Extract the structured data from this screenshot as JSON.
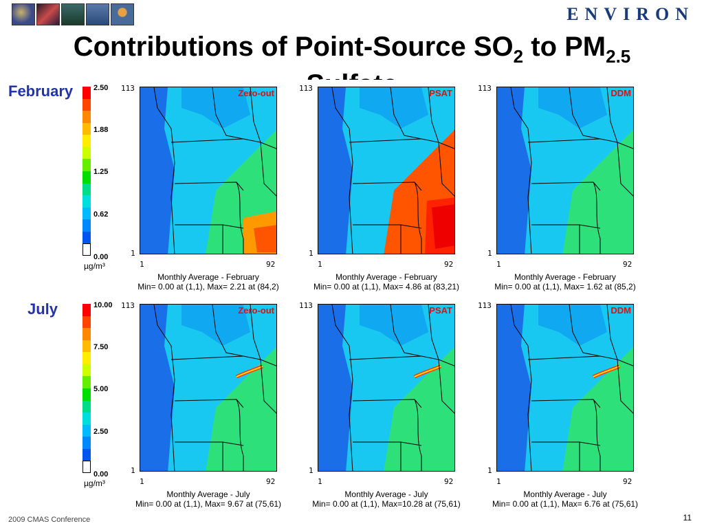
{
  "header": {
    "logo_text": "ENVIRON",
    "thumbnails": [
      {
        "icon": "globe-photo-icon",
        "color": "#3a4a8a"
      },
      {
        "icon": "dna-photo-icon",
        "color": "#7a2a3a"
      },
      {
        "icon": "forest-photo-icon",
        "color": "#2a5a4a"
      },
      {
        "icon": "water-photo-icon",
        "color": "#3a5a8a"
      },
      {
        "icon": "balloon-photo-icon",
        "color": "#4a6a9a"
      }
    ]
  },
  "title": {
    "part1": "Contributions of Point-Source SO",
    "sub1": "2",
    "part2": " to PM",
    "sub2": "2.5",
    "line2": "Sulfate"
  },
  "rows": [
    {
      "label": "February",
      "scale_ticks": [
        "2.50",
        "1.88",
        "1.25",
        "0.62",
        "0.00"
      ],
      "unit": "µg/m³",
      "panels": [
        {
          "method": "Zero-out",
          "caption1": "Monthly Average - February",
          "caption2": "Min= 0.00 at (1,1), Max= 2.21 at (84,2)"
        },
        {
          "method": "PSAT",
          "caption1": "Monthly Average - February",
          "caption2": "Min= 0.00 at (1,1), Max= 4.86 at (83,21)"
        },
        {
          "method": "DDM",
          "caption1": "Monthly Average - February",
          "caption2": "Min= 0.00 at (1,1), Max= 1.62 at (85,2)"
        }
      ]
    },
    {
      "label": "July",
      "scale_ticks": [
        "10.00",
        "7.50",
        "5.00",
        "2.50",
        "0.00"
      ],
      "unit": "µg/m³",
      "panels": [
        {
          "method": "Zero-out",
          "caption1": "Monthly Average - July",
          "caption2": "Min= 0.00 at (1,1), Max= 9.67 at (75,61)"
        },
        {
          "method": "PSAT",
          "caption1": "Monthly Average - July",
          "caption2": "Min= 0.00 at (1,1), Max=10.28 at (75,61)"
        },
        {
          "method": "DDM",
          "caption1": "Monthly Average - July",
          "caption2": "Min= 0.00 at (1,1), Max= 6.76 at (75,61)"
        }
      ]
    }
  ],
  "axes": {
    "ymax": "113",
    "ymin": "1",
    "xmin": "1",
    "xmax": "92"
  },
  "colors": {
    "scale": [
      "#ff0000",
      "#ff4400",
      "#ff8800",
      "#ffbb00",
      "#ffee00",
      "#ccff00",
      "#66ee00",
      "#00dd00",
      "#00dd88",
      "#00dddd",
      "#00bbff",
      "#0088ff",
      "#0055ee",
      "#ffffff"
    ],
    "map_base": "#1a6ee8",
    "map_mid": "#18c8f0",
    "map_high": "#2ee07a",
    "logo": "#1a3a7a",
    "method_label": "#dd1111"
  },
  "footer": {
    "conference": "2009 CMAS Conference",
    "page": "11"
  }
}
